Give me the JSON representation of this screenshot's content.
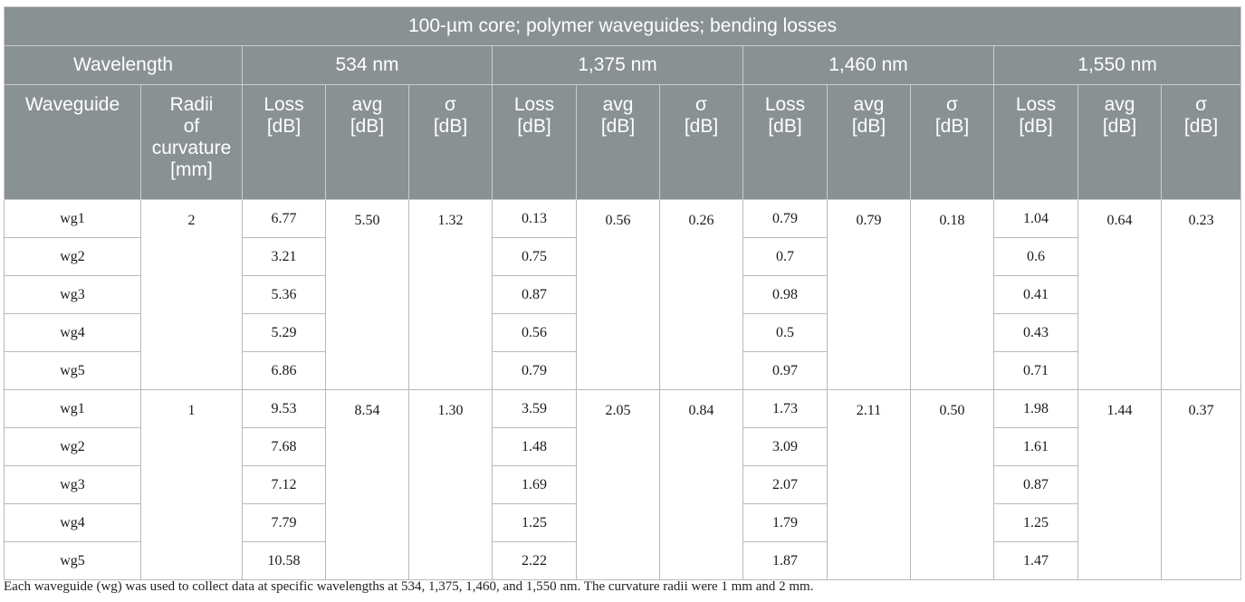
{
  "title": "100-µm core; polymer waveguides; bending losses",
  "header": {
    "wavelength_label": "Wavelength",
    "wavelengths": [
      "534 nm",
      "1,375 nm",
      "1,460 nm",
      "1,550 nm"
    ],
    "waveguide_label": "Waveguide",
    "radii_label": [
      "Radii",
      "of",
      "curvature",
      "[mm]"
    ],
    "sub_headers": [
      [
        "Loss",
        "[dB]"
      ],
      [
        "avg",
        "[dB]"
      ],
      [
        "σ",
        "[dB]"
      ]
    ]
  },
  "groups": [
    {
      "radius": "2",
      "waveguides": [
        "wg1",
        "wg2",
        "wg3",
        "wg4",
        "wg5"
      ],
      "wl534": {
        "loss": [
          "6.77",
          "3.21",
          "5.36",
          "5.29",
          "6.86"
        ],
        "avg": "5.50",
        "sigma": "1.32"
      },
      "wl1375": {
        "loss": [
          "0.13",
          "0.75",
          "0.87",
          "0.56",
          "0.79"
        ],
        "avg": "0.56",
        "sigma": "0.26"
      },
      "wl1460": {
        "loss": [
          "0.79",
          "0.7",
          "0.98",
          "0.5",
          "0.97"
        ],
        "avg": "0.79",
        "sigma": "0.18"
      },
      "wl1550": {
        "loss": [
          "1.04",
          "0.6",
          "0.41",
          "0.43",
          "0.71"
        ],
        "avg": "0.64",
        "sigma": "0.23"
      }
    },
    {
      "radius": "1",
      "waveguides": [
        "wg1",
        "wg2",
        "wg3",
        "wg4",
        "wg5"
      ],
      "wl534": {
        "loss": [
          "9.53",
          "7.68",
          "7.12",
          "7.79",
          "10.58"
        ],
        "avg": "8.54",
        "sigma": "1.30"
      },
      "wl1375": {
        "loss": [
          "3.59",
          "1.48",
          "1.69",
          "1.25",
          "2.22"
        ],
        "avg": "2.05",
        "sigma": "0.84"
      },
      "wl1460": {
        "loss": [
          "1.73",
          "3.09",
          "2.07",
          "1.79",
          "1.87"
        ],
        "avg": "2.11",
        "sigma": "0.50"
      },
      "wl1550": {
        "loss": [
          "1.98",
          "1.61",
          "0.87",
          "1.25",
          "1.47"
        ],
        "avg": "1.44",
        "sigma": "0.37"
      }
    }
  ],
  "footnote": "Each waveguide (wg) was used to collect data at specific wavelengths at 534, 1,375, 1,460, and 1,550 nm. The curvature radii were 1 mm and 2 mm."
}
